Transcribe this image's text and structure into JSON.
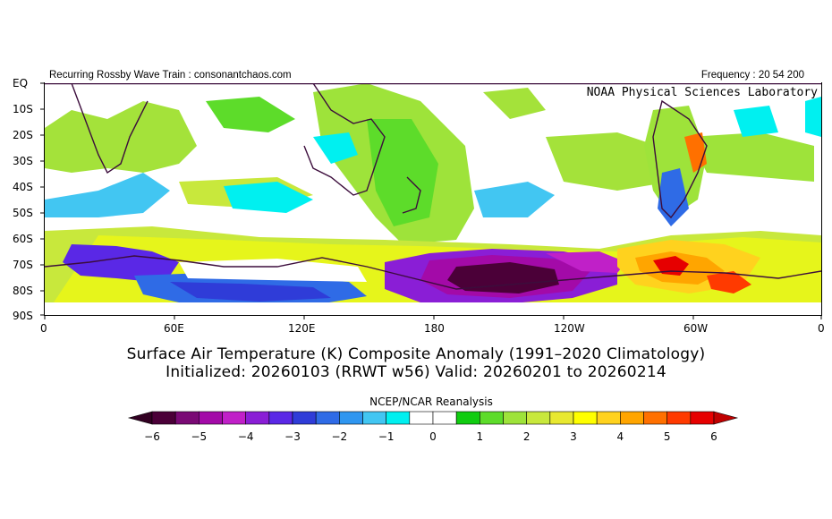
{
  "header": {
    "left_text": "Recurring Rossby Wave Train : consonantchaos.com",
    "right_text": "Frequency : 20 54 200",
    "org": "NOAA Physical Sciences Laboratory"
  },
  "map": {
    "lat_labels": [
      "EQ",
      "10S",
      "20S",
      "30S",
      "40S",
      "50S",
      "60S",
      "70S",
      "80S",
      "90S"
    ],
    "lon_labels": [
      "0",
      "60E",
      "120E",
      "180",
      "120W",
      "60W",
      "0"
    ]
  },
  "title": {
    "line1": "Surface Air Temperature (K) Composite Anomaly (1991–2020 Climatology)",
    "line2": "Initialized: 20260103 (RRWT w56) Valid: 20260201 to 20260214"
  },
  "colorbar": {
    "title": "NCEP/NCAR Reanalysis",
    "tick_labels": [
      "−6",
      "−5",
      "−4",
      "−3",
      "−2",
      "−1",
      "0",
      "1",
      "2",
      "3",
      "4",
      "5",
      "6"
    ],
    "colors": [
      "#4b0038",
      "#7a0a75",
      "#a30aa8",
      "#c020c8",
      "#8a1ed6",
      "#5a28e6",
      "#2f3cd8",
      "#2f6be6",
      "#2f96f0",
      "#42c6f2",
      "#00f0f0",
      "#ffffff",
      "#ffffff",
      "#10cc10",
      "#5ddc2a",
      "#9ee33a",
      "#c8e83c",
      "#e8e830",
      "#ffff00",
      "#ffd21e",
      "#ffa500",
      "#ff7000",
      "#ff3a00",
      "#e60000"
    ]
  }
}
